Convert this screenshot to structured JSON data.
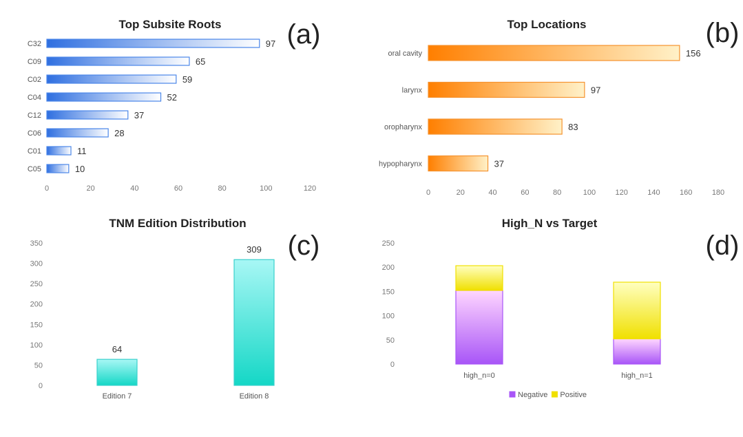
{
  "chart_data": [
    {
      "panel": "(a)",
      "type": "bar",
      "orientation": "horizontal",
      "title": "Top Subsite Roots",
      "categories": [
        "C32",
        "C09",
        "C02",
        "C04",
        "C12",
        "C06",
        "C01",
        "C05"
      ],
      "values": [
        97,
        65,
        59,
        52,
        37,
        28,
        11,
        10
      ],
      "xlim": [
        0,
        120
      ],
      "xticks": [
        "0",
        "20",
        "40",
        "60",
        "80",
        "100",
        "120"
      ],
      "colors": {
        "start": "#2f6fe0",
        "end": "#ffffff",
        "stroke": "#4a86e8"
      }
    },
    {
      "panel": "(b)",
      "type": "bar",
      "orientation": "horizontal",
      "title": "Top Locations",
      "categories": [
        "oral cavity",
        "larynx",
        "oropharynx",
        "hypopharynx"
      ],
      "values": [
        156,
        97,
        83,
        37
      ],
      "xlim": [
        0,
        180
      ],
      "xticks": [
        "0",
        "20",
        "40",
        "60",
        "80",
        "100",
        "120",
        "140",
        "160",
        "180"
      ],
      "colors": {
        "start": "#ff7f00",
        "end": "#fff1c8",
        "stroke": "#f5922e"
      }
    },
    {
      "panel": "(c)",
      "type": "bar",
      "orientation": "vertical",
      "title": "TNM Edition Distribution",
      "categories": [
        "Edition 7",
        "Edition 8"
      ],
      "values": [
        64,
        309
      ],
      "ylim": [
        0,
        350
      ],
      "yticks": [
        "0",
        "50",
        "100",
        "150",
        "200",
        "250",
        "300",
        "350"
      ],
      "colors": {
        "top": "#a8f7f5",
        "bottom": "#14d7c6",
        "stroke": "#39d0cc"
      }
    },
    {
      "panel": "(d)",
      "type": "bar",
      "orientation": "vertical",
      "stacked": true,
      "title": "High_N vs Target",
      "categories": [
        "high_n=0",
        "high_n=1"
      ],
      "series": [
        {
          "name": "Negative",
          "values": [
            152,
            52
          ],
          "color": "#a855f7",
          "light": "#ffd6ff"
        },
        {
          "name": "Positive",
          "values": [
            51,
            117
          ],
          "color": "#f0e000",
          "light": "#ffffc0"
        }
      ],
      "ylim": [
        0,
        250
      ],
      "yticks": [
        "0",
        "50",
        "100",
        "150",
        "200",
        "250"
      ],
      "legend_position": "bottom"
    }
  ]
}
